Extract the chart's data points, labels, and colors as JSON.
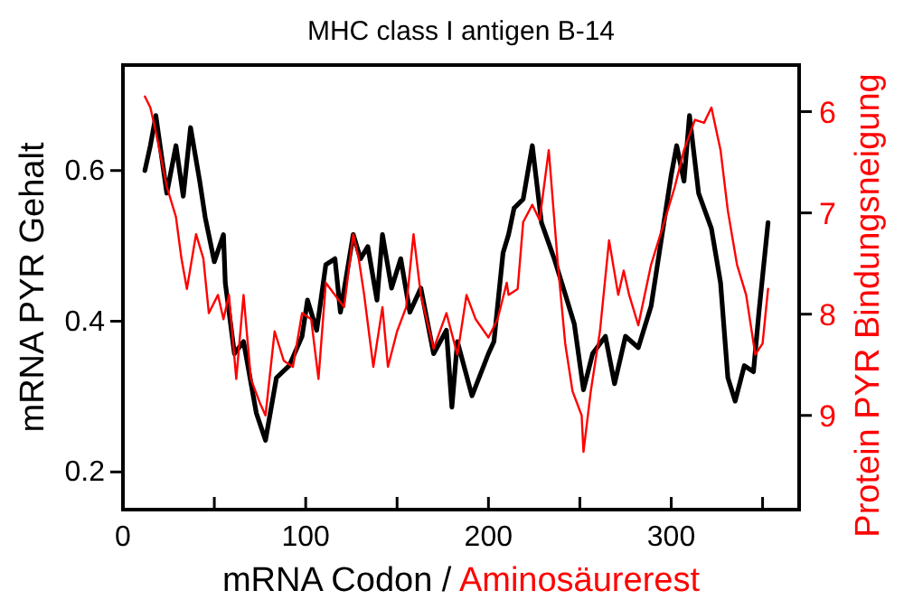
{
  "chart_data": {
    "type": "line",
    "title": "MHC class I antigen B-14",
    "xlabel": "mRNA Codon / Aminosäurerest",
    "ylabel": "mRNA PYR Gehalt",
    "y2label": "Protein PYR Bindungsneigung",
    "xlim": [
      0,
      370
    ],
    "xticks": [
      0,
      {
        "value": 50,
        "label": null
      },
      100,
      {
        "value": 150,
        "label": null
      },
      200,
      {
        "value": 250,
        "label": null
      },
      300,
      {
        "value": 350,
        "label": null
      }
    ],
    "ylim": [
      0.15,
      0.74
    ],
    "yticks": [
      0.2,
      0.4,
      0.6
    ],
    "y2lim": [
      9.93,
      5.54
    ],
    "y2ticks": [
      6,
      7,
      8,
      9
    ],
    "grid": false,
    "marker": "none",
    "line_style": "solid",
    "series": [
      {
        "color": "#000000",
        "x": [
          12,
          15,
          18,
          24,
          29,
          33,
          37,
          42,
          45,
          50,
          55,
          56,
          61,
          66,
          73,
          78,
          84,
          91,
          98,
          101,
          106,
          111,
          116,
          119,
          126,
          130,
          134,
          139,
          142,
          147,
          152,
          157,
          163,
          170,
          177,
          180,
          183,
          191,
          200,
          203,
          208,
          211,
          214,
          219,
          224,
          229,
          236,
          242,
          247,
          252,
          257,
          264,
          269,
          275,
          282,
          289,
          295,
          300,
          303,
          307,
          310,
          315,
          322,
          327,
          331,
          335,
          340,
          345,
          348,
          353
        ],
        "values": [
          0.6,
          0.633,
          0.673,
          0.57,
          0.633,
          0.566,
          0.657,
          0.586,
          0.538,
          0.479,
          0.515,
          0.451,
          0.357,
          0.373,
          0.278,
          0.242,
          0.325,
          0.341,
          0.38,
          0.428,
          0.388,
          0.475,
          0.483,
          0.412,
          0.515,
          0.483,
          0.499,
          0.428,
          0.515,
          0.444,
          0.483,
          0.412,
          0.444,
          0.357,
          0.388,
          0.286,
          0.373,
          0.301,
          0.357,
          0.373,
          0.491,
          0.515,
          0.55,
          0.562,
          0.633,
          0.531,
          0.483,
          0.436,
          0.396,
          0.309,
          0.357,
          0.38,
          0.317,
          0.38,
          0.365,
          0.42,
          0.515,
          0.594,
          0.633,
          0.586,
          0.673,
          0.57,
          0.523,
          0.451,
          0.325,
          0.294,
          0.341,
          0.333,
          0.412,
          0.531
        ]
      },
      {
        "color": "#ff0000",
        "axis": "y2",
        "x": [
          12,
          15,
          18,
          24,
          29,
          32,
          35,
          40,
          44,
          47,
          52,
          55,
          58,
          62,
          66,
          70,
          75,
          78,
          83,
          88,
          93,
          98,
          103,
          107,
          111,
          116,
          121,
          126,
          129,
          132,
          137,
          142,
          145,
          150,
          155,
          159,
          163,
          170,
          177,
          183,
          188,
          193,
          200,
          205,
          210,
          211,
          216,
          219,
          224,
          228,
          233,
          238,
          242,
          246,
          251,
          252,
          256,
          261,
          266,
          271,
          274,
          277,
          282,
          289,
          295,
          302,
          307,
          313,
          318,
          322,
          327,
          331,
          336,
          341,
          346,
          350,
          353
        ],
        "values": [
          5.85,
          5.96,
          6.2,
          6.74,
          7.04,
          7.45,
          7.75,
          7.21,
          7.45,
          7.99,
          7.81,
          8.05,
          7.81,
          8.64,
          7.81,
          8.64,
          8.88,
          9.0,
          8.17,
          8.46,
          8.52,
          7.99,
          8.05,
          8.64,
          7.69,
          7.81,
          7.93,
          7.21,
          7.45,
          7.81,
          8.52,
          7.93,
          8.52,
          8.17,
          7.93,
          7.21,
          7.81,
          8.34,
          7.99,
          8.4,
          7.81,
          8.05,
          8.23,
          8.05,
          7.69,
          7.81,
          7.75,
          7.09,
          6.92,
          7.07,
          6.38,
          7.51,
          8.29,
          8.76,
          9.0,
          9.36,
          8.76,
          8.17,
          7.27,
          7.81,
          7.57,
          7.81,
          8.11,
          7.51,
          7.16,
          6.74,
          6.38,
          6.08,
          6.11,
          5.96,
          6.38,
          6.98,
          7.51,
          7.81,
          8.4,
          8.29,
          7.75
        ]
      }
    ]
  }
}
